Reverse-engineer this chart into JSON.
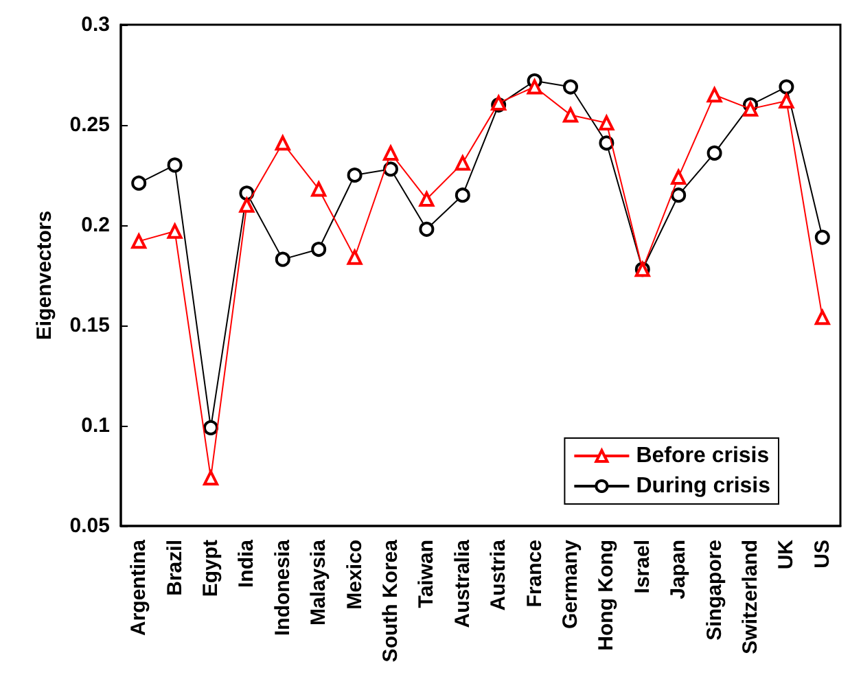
{
  "chart_data": {
    "type": "line",
    "ylabel": "Eigenvectors",
    "categories": [
      "Argentina",
      "Brazil",
      "Egypt",
      "India",
      "Indonesia",
      "Malaysia",
      "Mexico",
      "South Korea",
      "Taiwan",
      "Australia",
      "Austria",
      "France",
      "Germany",
      "Hong Kong",
      "Israel",
      "Japan",
      "Singapore",
      "Switzerland",
      "UK",
      "US"
    ],
    "series": [
      {
        "name": "Before crisis",
        "color": "#ff0000",
        "marker": "triangle",
        "values": [
          0.192,
          0.197,
          0.074,
          0.21,
          0.241,
          0.218,
          0.184,
          0.236,
          0.213,
          0.231,
          0.261,
          0.269,
          0.255,
          0.251,
          0.178,
          0.224,
          0.265,
          0.258,
          0.262,
          0.154
        ]
      },
      {
        "name": "During crisis",
        "color": "#000000",
        "marker": "circle",
        "values": [
          0.221,
          0.23,
          0.099,
          0.216,
          0.183,
          0.188,
          0.225,
          0.228,
          0.198,
          0.215,
          0.26,
          0.272,
          0.269,
          0.241,
          0.178,
          0.215,
          0.236,
          0.26,
          0.269,
          0.194
        ]
      }
    ],
    "ylim": [
      0.05,
      0.3
    ],
    "yticks": [
      0.05,
      0.1,
      0.15,
      0.2,
      0.25,
      0.3
    ],
    "grid": false,
    "legend": "bottom right",
    "line_style": "solid"
  }
}
